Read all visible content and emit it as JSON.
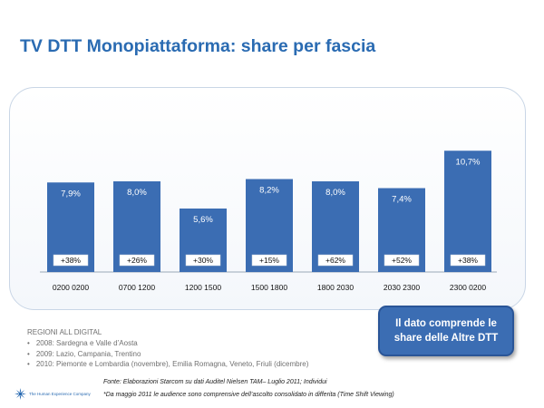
{
  "title": "TV DTT Monopiattaforma: share per fascia",
  "chart_data": {
    "type": "bar",
    "categories": [
      "0200 0200",
      "0700 1200",
      "1200 1500",
      "1500 1800",
      "1800 2030",
      "2030 2300",
      "2300 0200"
    ],
    "values": [
      7.9,
      8.0,
      5.6,
      8.2,
      8.0,
      7.4,
      10.7
    ],
    "value_labels": [
      "7,9%",
      "8,0%",
      "5,6%",
      "8,2%",
      "8,0%",
      "7,4%",
      "10,7%"
    ],
    "growth_labels": [
      "+38%",
      "+26%",
      "+30%",
      "+15%",
      "+62%",
      "+52%",
      "+38%"
    ],
    "ylim": [
      0,
      12
    ],
    "grid": false,
    "bar_color": "#3b6db3"
  },
  "callout": {
    "line1": "Il dato comprende le",
    "line2": "share delle Altre DTT"
  },
  "regions": {
    "heading": "REGIONI ALL DIGITAL",
    "items": [
      "2008: Sardegna e Valle d’Aosta",
      "2009: Lazio, Campania, Trentino",
      "2010: Piemonte e Lombardia (novembre), Emilia Romagna, Veneto, Friuli (dicembre)"
    ]
  },
  "source": "Fonte: Elaborazioni Starcom su dati Auditel Nielsen TAM– Luglio 2011; Individui",
  "footnote": "*Da maggio 2011 le audience sono comprensive dell’ascolto consolidato in differita (Time Shift Viewing)",
  "logo": {
    "text": "The Human Experience Company",
    "icon": "starburst-icon"
  },
  "colors": {
    "title": "#2a6bb2",
    "bar": "#3b6db3",
    "callout_bg": "#3b6db3"
  }
}
